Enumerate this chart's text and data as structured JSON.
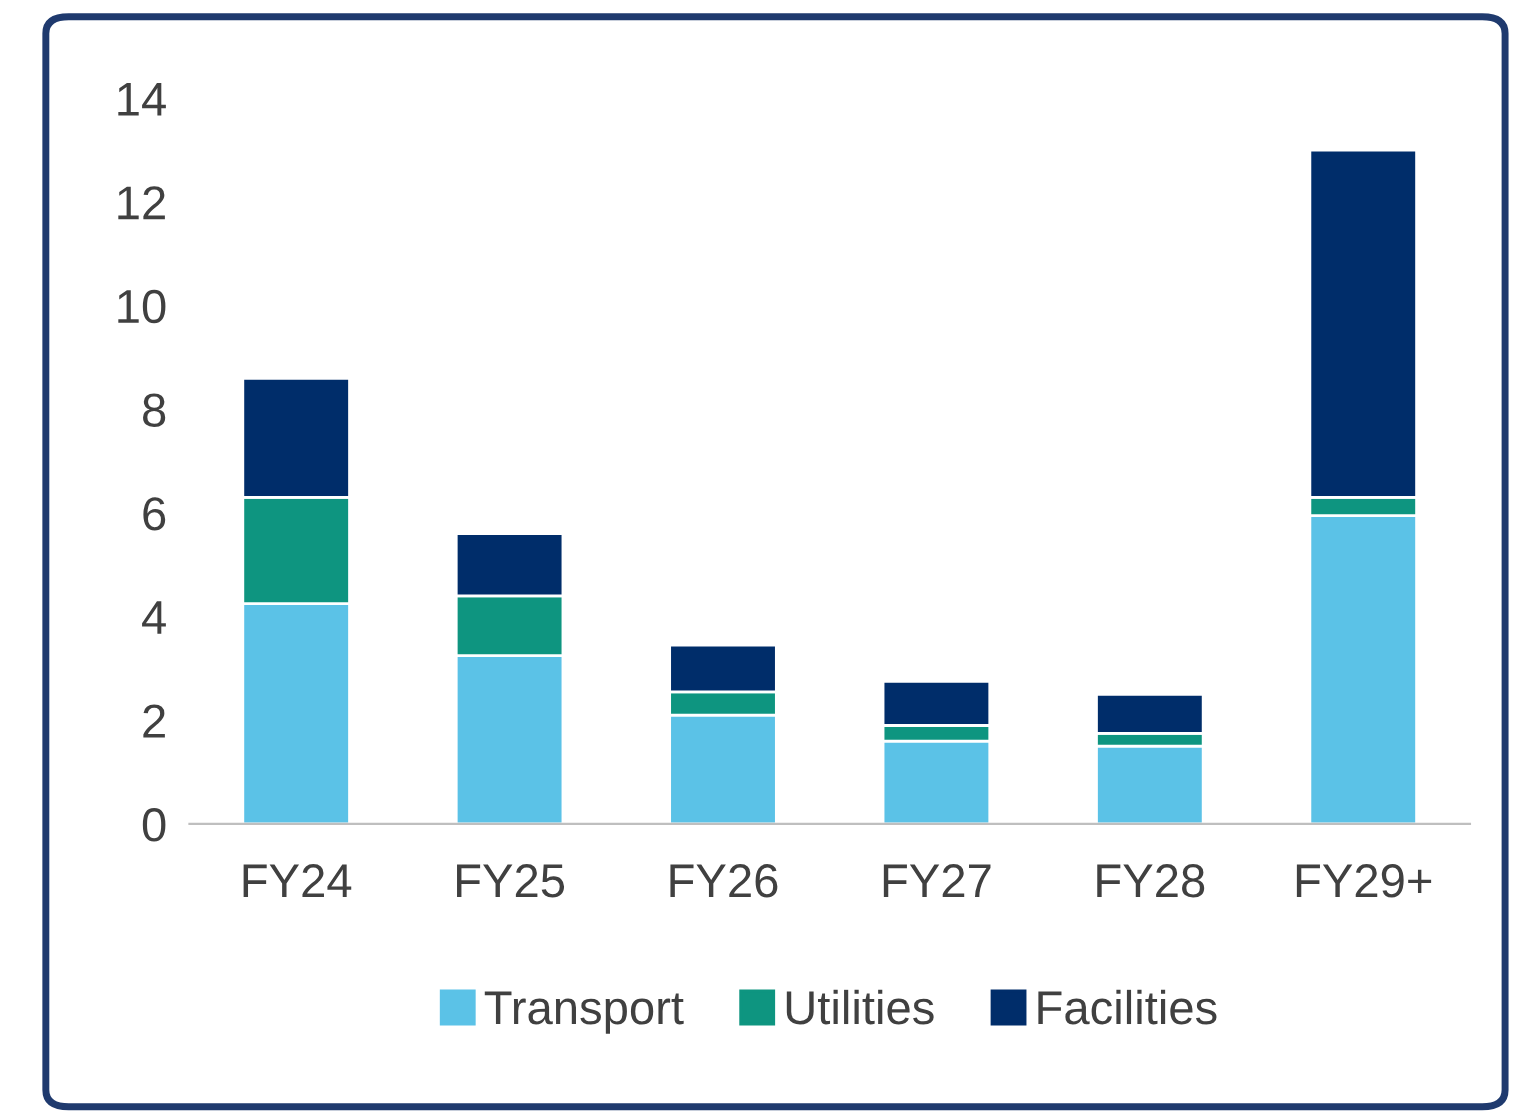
{
  "chart_data": {
    "type": "bar",
    "stacked": true,
    "categories": [
      "FY24",
      "FY25",
      "FY26",
      "FY27",
      "FY28",
      "FY29+"
    ],
    "series": [
      {
        "name": "Transport",
        "color": "#5bc2e7",
        "values": [
          4.25,
          3.25,
          2.1,
          1.6,
          1.5,
          5.95
        ]
      },
      {
        "name": "Utilities",
        "color": "#0e9580",
        "values": [
          2.05,
          1.15,
          0.45,
          0.3,
          0.25,
          0.35
        ]
      },
      {
        "name": "Facilities",
        "color": "#002d6a",
        "values": [
          2.3,
          1.2,
          0.9,
          0.85,
          0.75,
          6.7
        ]
      }
    ],
    "ylim": [
      0,
      14
    ],
    "yticks": [
      0,
      2,
      4,
      6,
      8,
      10,
      12,
      14
    ],
    "grid": false,
    "legend": "bottom"
  }
}
